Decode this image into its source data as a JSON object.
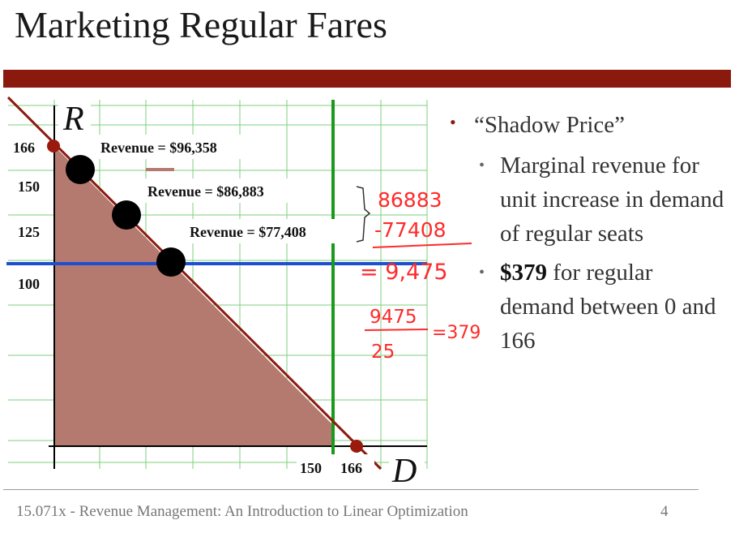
{
  "slide": {
    "title": "Marketing Regular Fares",
    "footer": "15.071x - Revenue Management: An Introduction to Linear Optimization",
    "page_number": "4",
    "colors": {
      "accent_bar": "#8b1a0e",
      "region_fill": "#b47a70",
      "horizontal_line": "#1f4fd0",
      "vertical_line": "#1a9a1a",
      "handwriting": "#ff2a2a"
    }
  },
  "chart": {
    "axis_labels": {
      "y": "R",
      "x": "D"
    },
    "y_ticks": [
      "166",
      "150",
      "125",
      "100"
    ],
    "x_ticks": [
      "150",
      "166"
    ],
    "revenue_labels": [
      "Revenue = $96,358",
      "Revenue = $86,883",
      "Revenue = $77,408"
    ]
  },
  "handwriting": {
    "minuend": "86883",
    "subtrahend": "-77408",
    "difference": "= 9,475",
    "numerator": "9475",
    "denominator": "25",
    "result": "=379"
  },
  "bullets": {
    "main": "“Shadow Price”",
    "sub1": "Marginal revenue for unit increase in demand of regular seats",
    "sub2_bold": "$379",
    "sub2_rest": " for regular demand between 0 and 166"
  }
}
